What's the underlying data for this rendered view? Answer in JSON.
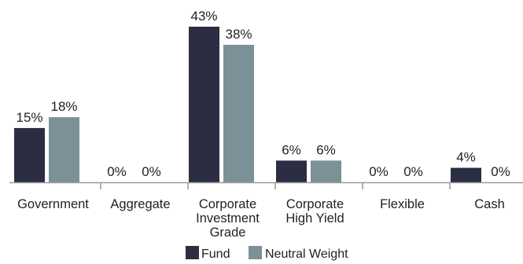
{
  "chart_data": {
    "type": "bar",
    "title": "",
    "xlabel": "",
    "ylabel": "",
    "ylim": [
      0,
      43
    ],
    "grid": false,
    "legend_position": "bottom",
    "value_suffix": "%",
    "categories": [
      "Government",
      "Aggregate",
      "Corporate Investment Grade",
      "Corporate High Yield",
      "Flexible",
      "Cash"
    ],
    "category_lines": [
      [
        "Government"
      ],
      [
        "Aggregate"
      ],
      [
        "Corporate",
        "Investment",
        "Grade"
      ],
      [
        "Corporate",
        "High Yield"
      ],
      [
        "Flexible"
      ],
      [
        "Cash"
      ]
    ],
    "series": [
      {
        "name": "Fund",
        "color": "#2b2d42",
        "values": [
          15,
          0,
          43,
          6,
          0,
          4
        ]
      },
      {
        "name": "Neutral Weight",
        "color": "#7b9197",
        "values": [
          18,
          0,
          38,
          6,
          0,
          0
        ]
      }
    ],
    "axis_color": "#9a9a9a"
  }
}
